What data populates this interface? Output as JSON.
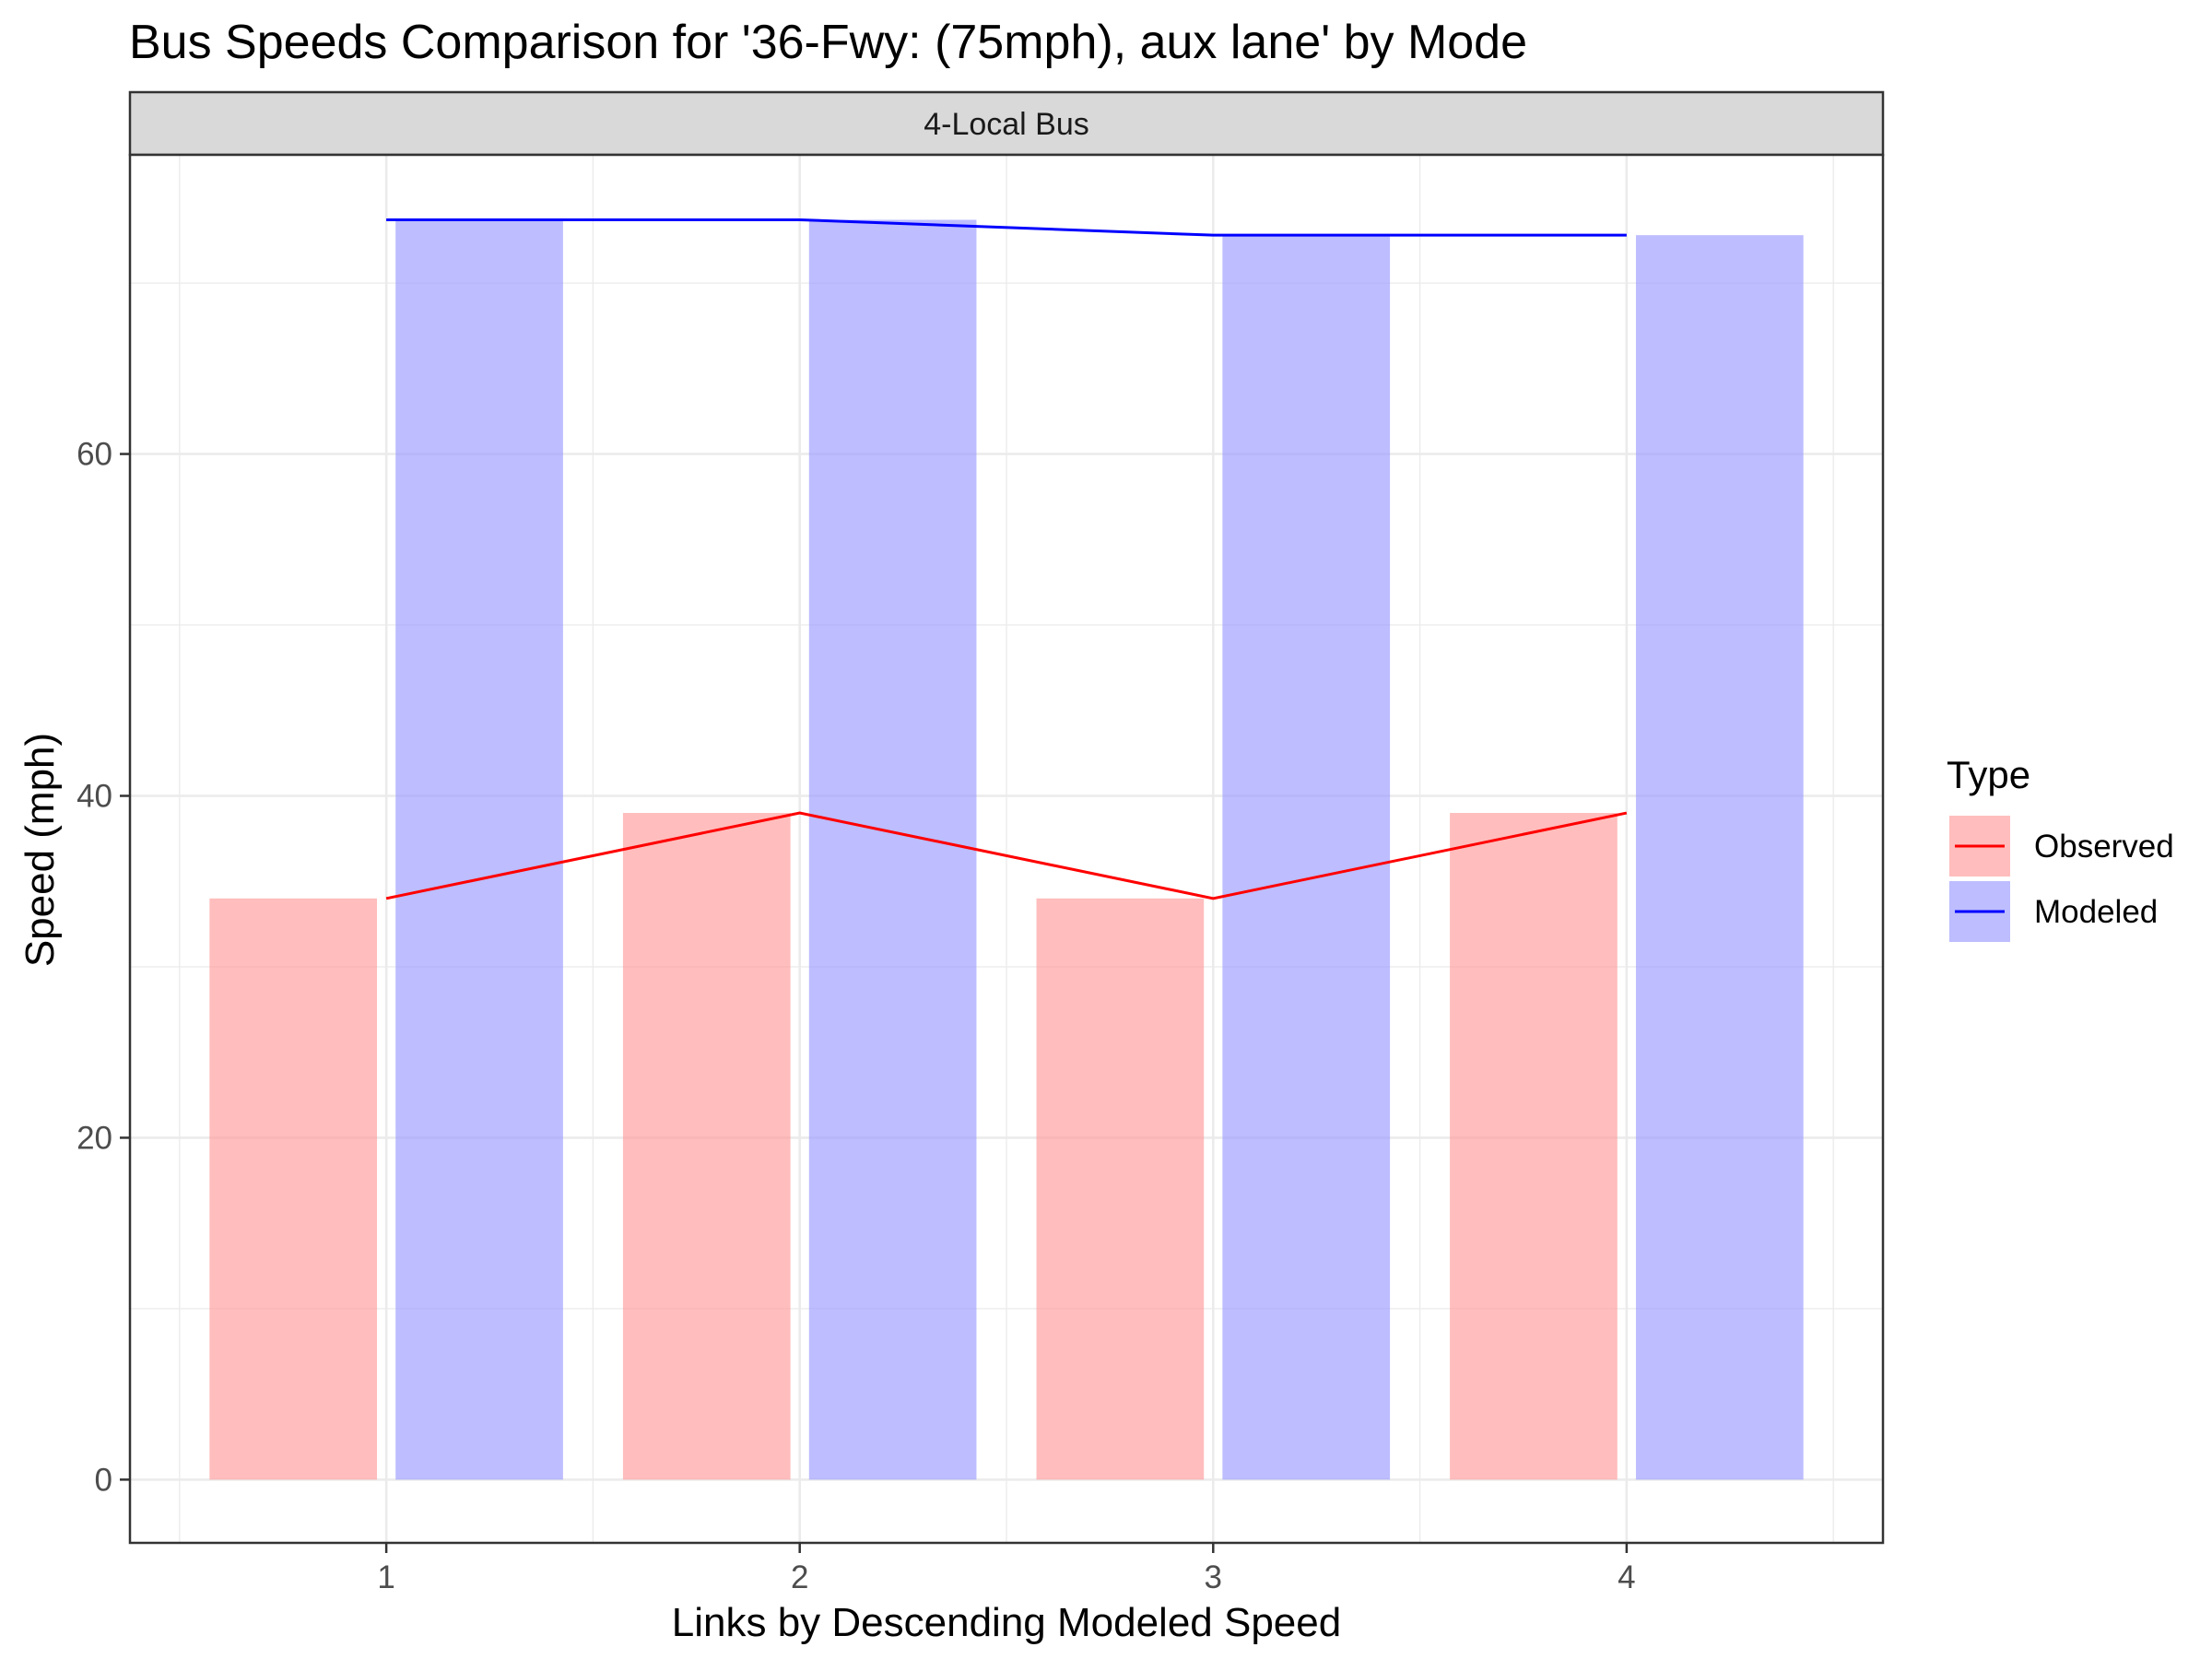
{
  "chart_data": {
    "type": "bar",
    "title": "Bus Speeds Comparison for '36-Fwy: (75mph), aux lane' by Mode",
    "facet_label": "4-Local Bus",
    "xlabel": "Links by Descending Modeled Speed",
    "ylabel": "Speed (mph)",
    "categories": [
      "1",
      "2",
      "3",
      "4"
    ],
    "x": [
      1,
      2,
      3,
      4
    ],
    "ylim": [
      -3.7,
      77.5
    ],
    "xlim": [
      0.38,
      4.62
    ],
    "y_ticks": [
      0,
      20,
      40,
      60
    ],
    "grid": true,
    "legend": {
      "title": "Type",
      "position": "right",
      "items": [
        "Observed",
        "Modeled"
      ]
    },
    "series": [
      {
        "name": "Observed",
        "values": [
          34,
          39,
          34,
          39
        ],
        "bar_color": "#ff9999",
        "line_color": "#ff0000",
        "bar_offset": -0.225
      },
      {
        "name": "Modeled",
        "values": [
          73.7,
          73.7,
          72.8,
          72.8
        ],
        "bar_color": "#9999ff",
        "line_color": "#0000ff",
        "bar_offset": 0.225
      }
    ]
  }
}
